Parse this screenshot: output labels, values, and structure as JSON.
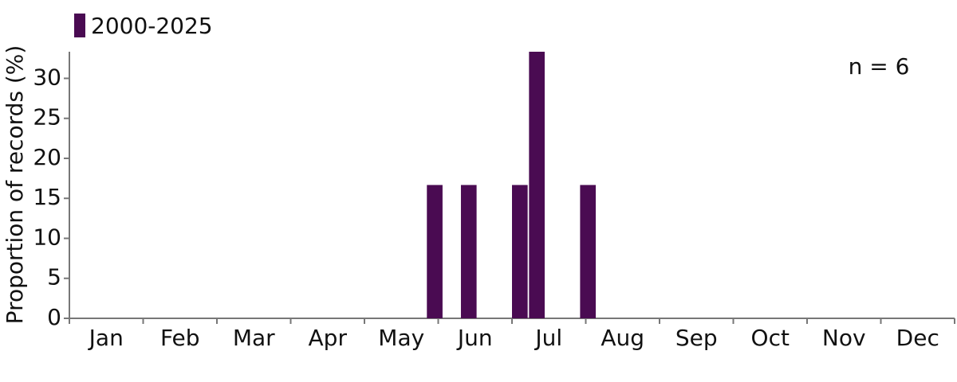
{
  "chart_data": {
    "type": "bar",
    "categories": [
      "Jan",
      "Feb",
      "Mar",
      "Apr",
      "May",
      "Jun",
      "Jul",
      "Aug",
      "Sep",
      "Oct",
      "Nov",
      "Dec"
    ],
    "x": [
      21,
      23,
      26,
      27,
      30
    ],
    "xlim": [
      0,
      52
    ],
    "series": [
      {
        "name": "2000-2025",
        "color": "#4a0b52",
        "values": [
          16.67,
          16.67,
          16.67,
          33.33,
          16.67
        ]
      }
    ],
    "ylim": [
      0,
      33.33
    ],
    "yticks": [
      0,
      5,
      10,
      15,
      20,
      25,
      30
    ],
    "ylabel": "Proportion of records (%)",
    "annotation": "n = 6",
    "legend": "top-left"
  }
}
